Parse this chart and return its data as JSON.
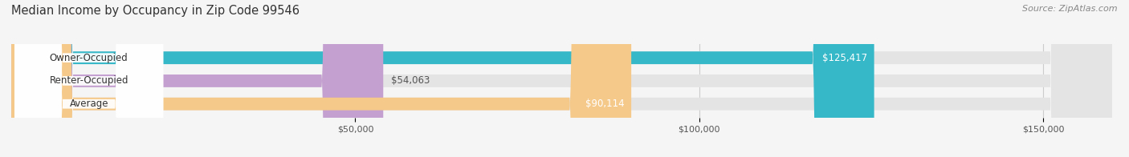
{
  "title": "Median Income by Occupancy in Zip Code 99546",
  "source_text": "Source: ZipAtlas.com",
  "categories": [
    "Owner-Occupied",
    "Renter-Occupied",
    "Average"
  ],
  "values": [
    125417,
    54063,
    90114
  ],
  "bar_colors": [
    "#36b8c8",
    "#c4a0d0",
    "#f5c98a"
  ],
  "value_labels": [
    "$125,417",
    "$54,063",
    "$90,114"
  ],
  "xlim": [
    0,
    160000
  ],
  "xticks": [
    50000,
    100000,
    150000
  ],
  "xtick_labels": [
    "$50,000",
    "$100,000",
    "$150,000"
  ],
  "bar_height": 0.55,
  "background_color": "#f5f5f5",
  "bar_bg_color": "#e4e4e4",
  "title_fontsize": 10.5,
  "source_fontsize": 8,
  "tick_fontsize": 8,
  "label_fontsize": 8.5
}
